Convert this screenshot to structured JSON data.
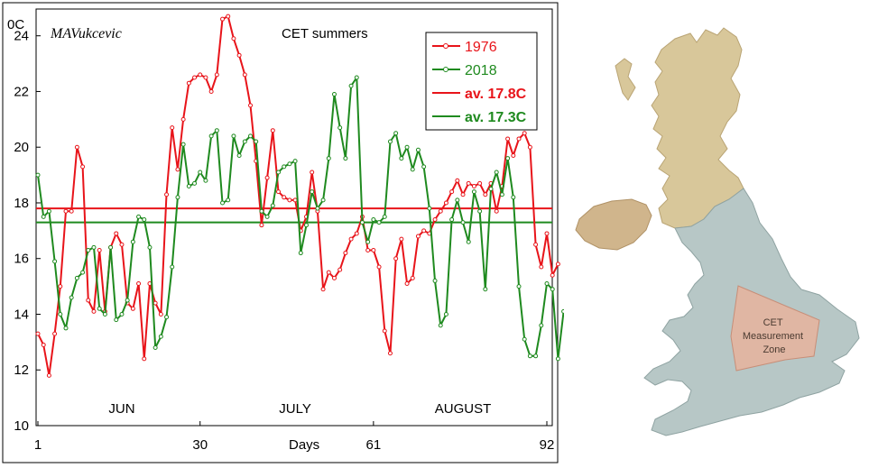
{
  "signature": "MAVukcevic",
  "chart_data": {
    "type": "line",
    "title": "CET summers",
    "xlabel": "Days",
    "ylabel": "0C",
    "ylim": [
      10,
      24.8
    ],
    "xlim": [
      1,
      92
    ],
    "yticks": [
      10,
      12,
      14,
      16,
      18,
      20,
      22,
      24
    ],
    "xticks": [
      1,
      30,
      61,
      92
    ],
    "month_labels": [
      {
        "label": "JUN",
        "x": 16
      },
      {
        "label": "JULY",
        "x": 47
      },
      {
        "label": "AUGUST",
        "x": 77
      }
    ],
    "series": [
      {
        "name": "1976",
        "color": "#e8141a",
        "values": [
          13.3,
          12.9,
          11.8,
          13.3,
          15.0,
          17.7,
          17.7,
          20.0,
          19.3,
          14.5,
          14.1,
          16.3,
          14.1,
          16.4,
          16.9,
          16.5,
          14.4,
          14.2,
          15.1,
          12.4,
          15.1,
          14.4,
          14.0,
          18.3,
          20.7,
          19.2,
          21.0,
          22.3,
          22.5,
          22.6,
          22.5,
          22.0,
          22.6,
          24.6,
          24.7,
          23.9,
          23.3,
          22.6,
          21.5,
          19.5,
          17.2,
          18.9,
          20.6,
          18.4,
          18.2,
          18.1,
          18.1,
          17.0,
          17.5,
          19.1,
          17.7,
          14.9,
          15.5,
          15.3,
          15.6,
          16.2,
          16.7,
          16.9,
          17.5,
          16.3,
          16.3,
          15.7,
          13.4,
          12.6,
          16.0,
          16.7,
          15.1,
          15.3,
          16.8,
          17.0,
          16.9,
          17.4,
          17.7,
          18.0,
          18.4,
          18.8,
          18.3,
          18.7,
          18.6,
          18.7,
          18.3,
          18.7,
          17.7,
          18.6,
          20.3,
          19.7,
          20.3,
          20.5,
          20.0,
          16.5,
          15.7,
          16.9,
          15.4,
          15.8
        ]
      },
      {
        "name": "2018",
        "color": "#1f8a1f",
        "values": [
          19.0,
          17.5,
          17.7,
          15.9,
          14.0,
          13.5,
          14.6,
          15.3,
          15.5,
          16.3,
          16.4,
          14.2,
          14.0,
          16.4,
          13.8,
          14.0,
          14.5,
          16.6,
          17.5,
          17.4,
          16.4,
          12.8,
          13.2,
          13.9,
          15.7,
          18.2,
          20.1,
          18.6,
          18.7,
          19.1,
          18.8,
          20.4,
          20.6,
          18.0,
          18.1,
          20.4,
          19.7,
          20.2,
          20.4,
          20.2,
          17.7,
          17.5,
          17.9,
          19.1,
          19.3,
          19.4,
          19.5,
          16.2,
          17.2,
          18.4,
          17.8,
          18.1,
          19.6,
          21.9,
          20.7,
          19.6,
          22.2,
          22.5,
          17.3,
          16.6,
          17.4,
          17.3,
          17.5,
          20.2,
          20.5,
          19.6,
          20.0,
          19.2,
          19.9,
          19.3,
          17.8,
          15.2,
          13.6,
          14.0,
          17.4,
          18.1,
          17.3,
          16.6,
          18.4,
          17.7,
          14.9,
          18.5,
          19.1,
          18.3,
          19.6,
          18.2,
          15.0,
          13.1,
          12.5,
          12.5,
          13.6,
          15.1,
          14.9,
          12.4,
          14.1
        ]
      }
    ],
    "averages": [
      {
        "name": "av. 17.8C",
        "value": 17.8,
        "color": "#e8141a"
      },
      {
        "name": "av. 17.3C",
        "value": 17.3,
        "color": "#1f8a1f"
      }
    ],
    "grid": false,
    "legend_position": "top-right"
  },
  "map": {
    "zone_label_lines": [
      "CET",
      "Measurement",
      "Zone"
    ]
  }
}
